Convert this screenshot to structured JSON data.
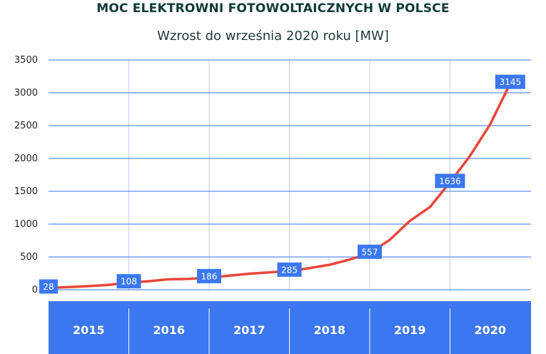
{
  "chart_data": {
    "type": "line",
    "title": "MOC ELEKTROWNI FOTOWOLTAICZNYCH W POLSCE",
    "subtitle": "Wzrost do września 2020 roku [MW]",
    "xlabel": "",
    "ylabel": "",
    "ylim": [
      0,
      3500
    ],
    "yticks": [
      0,
      500,
      1000,
      1500,
      2000,
      2500,
      3000,
      3500
    ],
    "categories": [
      "2015",
      "2016",
      "2017",
      "2018",
      "2019",
      "2020"
    ],
    "grid": true,
    "series": [
      {
        "color": "#e8473b",
        "x": [
          2015.0,
          2015.25,
          2015.5,
          2015.75,
          2016.0,
          2016.25,
          2016.5,
          2016.75,
          2017.0,
          2017.25,
          2017.5,
          2017.75,
          2018.0,
          2018.25,
          2018.5,
          2018.75,
          2019.0,
          2019.25,
          2019.5,
          2019.75,
          2020.0,
          2020.25,
          2020.5,
          2020.75
        ],
        "values": [
          28,
          40,
          55,
          75,
          108,
          130,
          160,
          165,
          186,
          215,
          245,
          265,
          285,
          330,
          380,
          460,
          557,
          760,
          1050,
          1260,
          1636,
          2040,
          2520,
          3145
        ]
      }
    ],
    "data_labels": [
      {
        "x": 2015.0,
        "value": 28,
        "text": "28"
      },
      {
        "x": 2016.0,
        "value": 108,
        "text": "108"
      },
      {
        "x": 2017.0,
        "value": 186,
        "text": "186"
      },
      {
        "x": 2018.0,
        "value": 285,
        "text": "285"
      },
      {
        "x": 2019.0,
        "value": 557,
        "text": "557"
      },
      {
        "x": 2020.0,
        "value": 1636,
        "text": "1636"
      },
      {
        "x": 2020.75,
        "value": 3145,
        "text": "3145"
      }
    ],
    "colors": {
      "line": "#e8473b",
      "accent": "#3b78f0",
      "title": "#0f3b35"
    }
  }
}
